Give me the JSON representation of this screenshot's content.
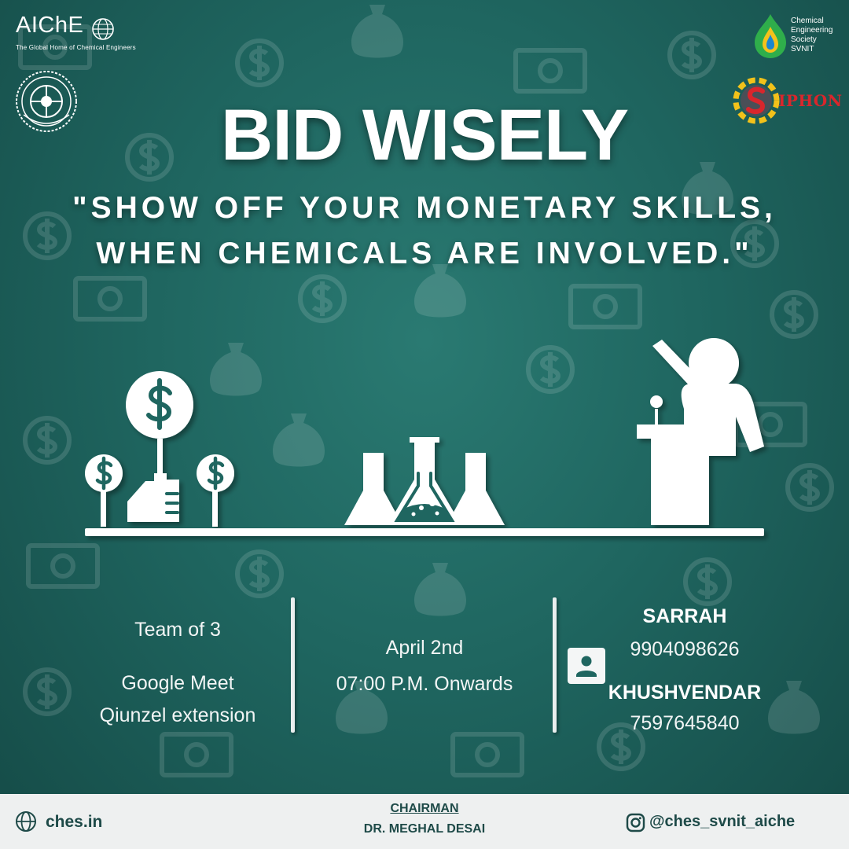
{
  "logos": {
    "aiche_name": "AIChE",
    "aiche_tagline": "The Global Home of Chemical Engineers",
    "ches_lines": [
      "Chemical",
      "Engineering",
      "Society",
      "SVNIT"
    ],
    "siphon_name": "IPHON"
  },
  "title": "BID WISELY",
  "tagline": {
    "line1": "\"SHOW OFF YOUR MONETARY SKILLS,",
    "line2": "WHEN CHEMICALS ARE INVOLVED.\""
  },
  "illustration_icons": [
    "dollar-coin-tree-icon",
    "lab-flasks-icon",
    "auctioneer-podium-icon"
  ],
  "details": {
    "team": "Team of 3",
    "platform": "Google Meet",
    "extension": "Qiunzel extension",
    "date": "April 2nd",
    "time": "07:00 P.M. Onwards"
  },
  "contacts": [
    {
      "name": "SARRAH",
      "phone": "9904098626"
    },
    {
      "name": "KHUSHVENDAR",
      "phone": "7597645840"
    }
  ],
  "footer": {
    "website": "ches.in",
    "chairman_label": "CHAIRMAN",
    "chairman_name": "DR. MEGHAL DESAI",
    "instagram": "@ches_svnit_aiche"
  },
  "colors": {
    "background": "#1f6660",
    "footer_bg": "#eef0f0",
    "footer_text": "#1e4a48",
    "siphon_red": "#d9262c"
  }
}
